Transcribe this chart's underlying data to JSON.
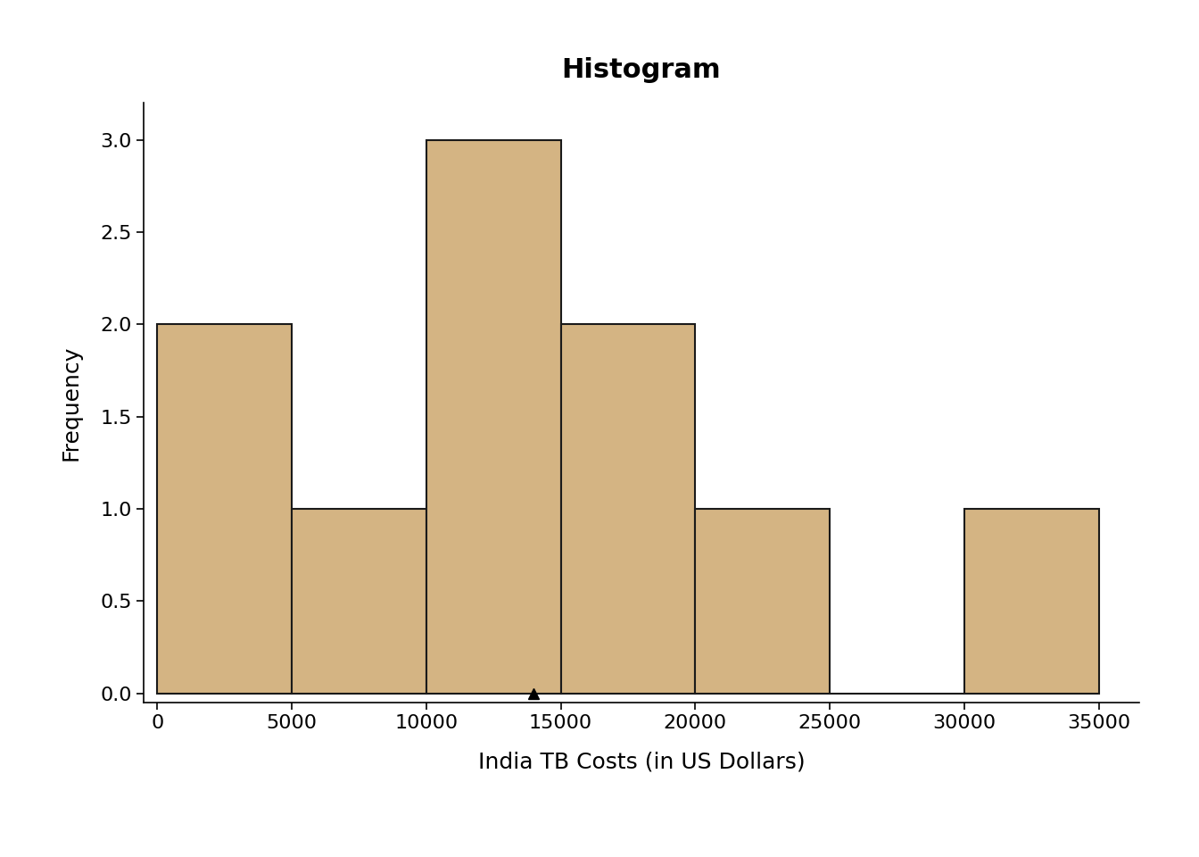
{
  "title": "Histogram",
  "xlabel": "India TB Costs (in US Dollars)",
  "ylabel": "Frequency",
  "bin_edges": [
    0,
    5000,
    10000,
    15000,
    20000,
    25000,
    30000,
    35000
  ],
  "frequencies": [
    2,
    1,
    3,
    2,
    1,
    0,
    1
  ],
  "bar_color": "#d4b483",
  "bar_edgecolor": "#1a1a1a",
  "xlim": [
    -500,
    36500
  ],
  "ylim": [
    -0.05,
    3.2
  ],
  "yticks": [
    0.0,
    0.5,
    1.0,
    1.5,
    2.0,
    2.5,
    3.0
  ],
  "xticks": [
    0,
    5000,
    10000,
    15000,
    20000,
    25000,
    30000,
    35000
  ],
  "mean_marker_x": 14000,
  "title_fontsize": 22,
  "axis_label_fontsize": 18,
  "tick_fontsize": 16,
  "background_color": "#ffffff",
  "bar_linewidth": 1.5
}
